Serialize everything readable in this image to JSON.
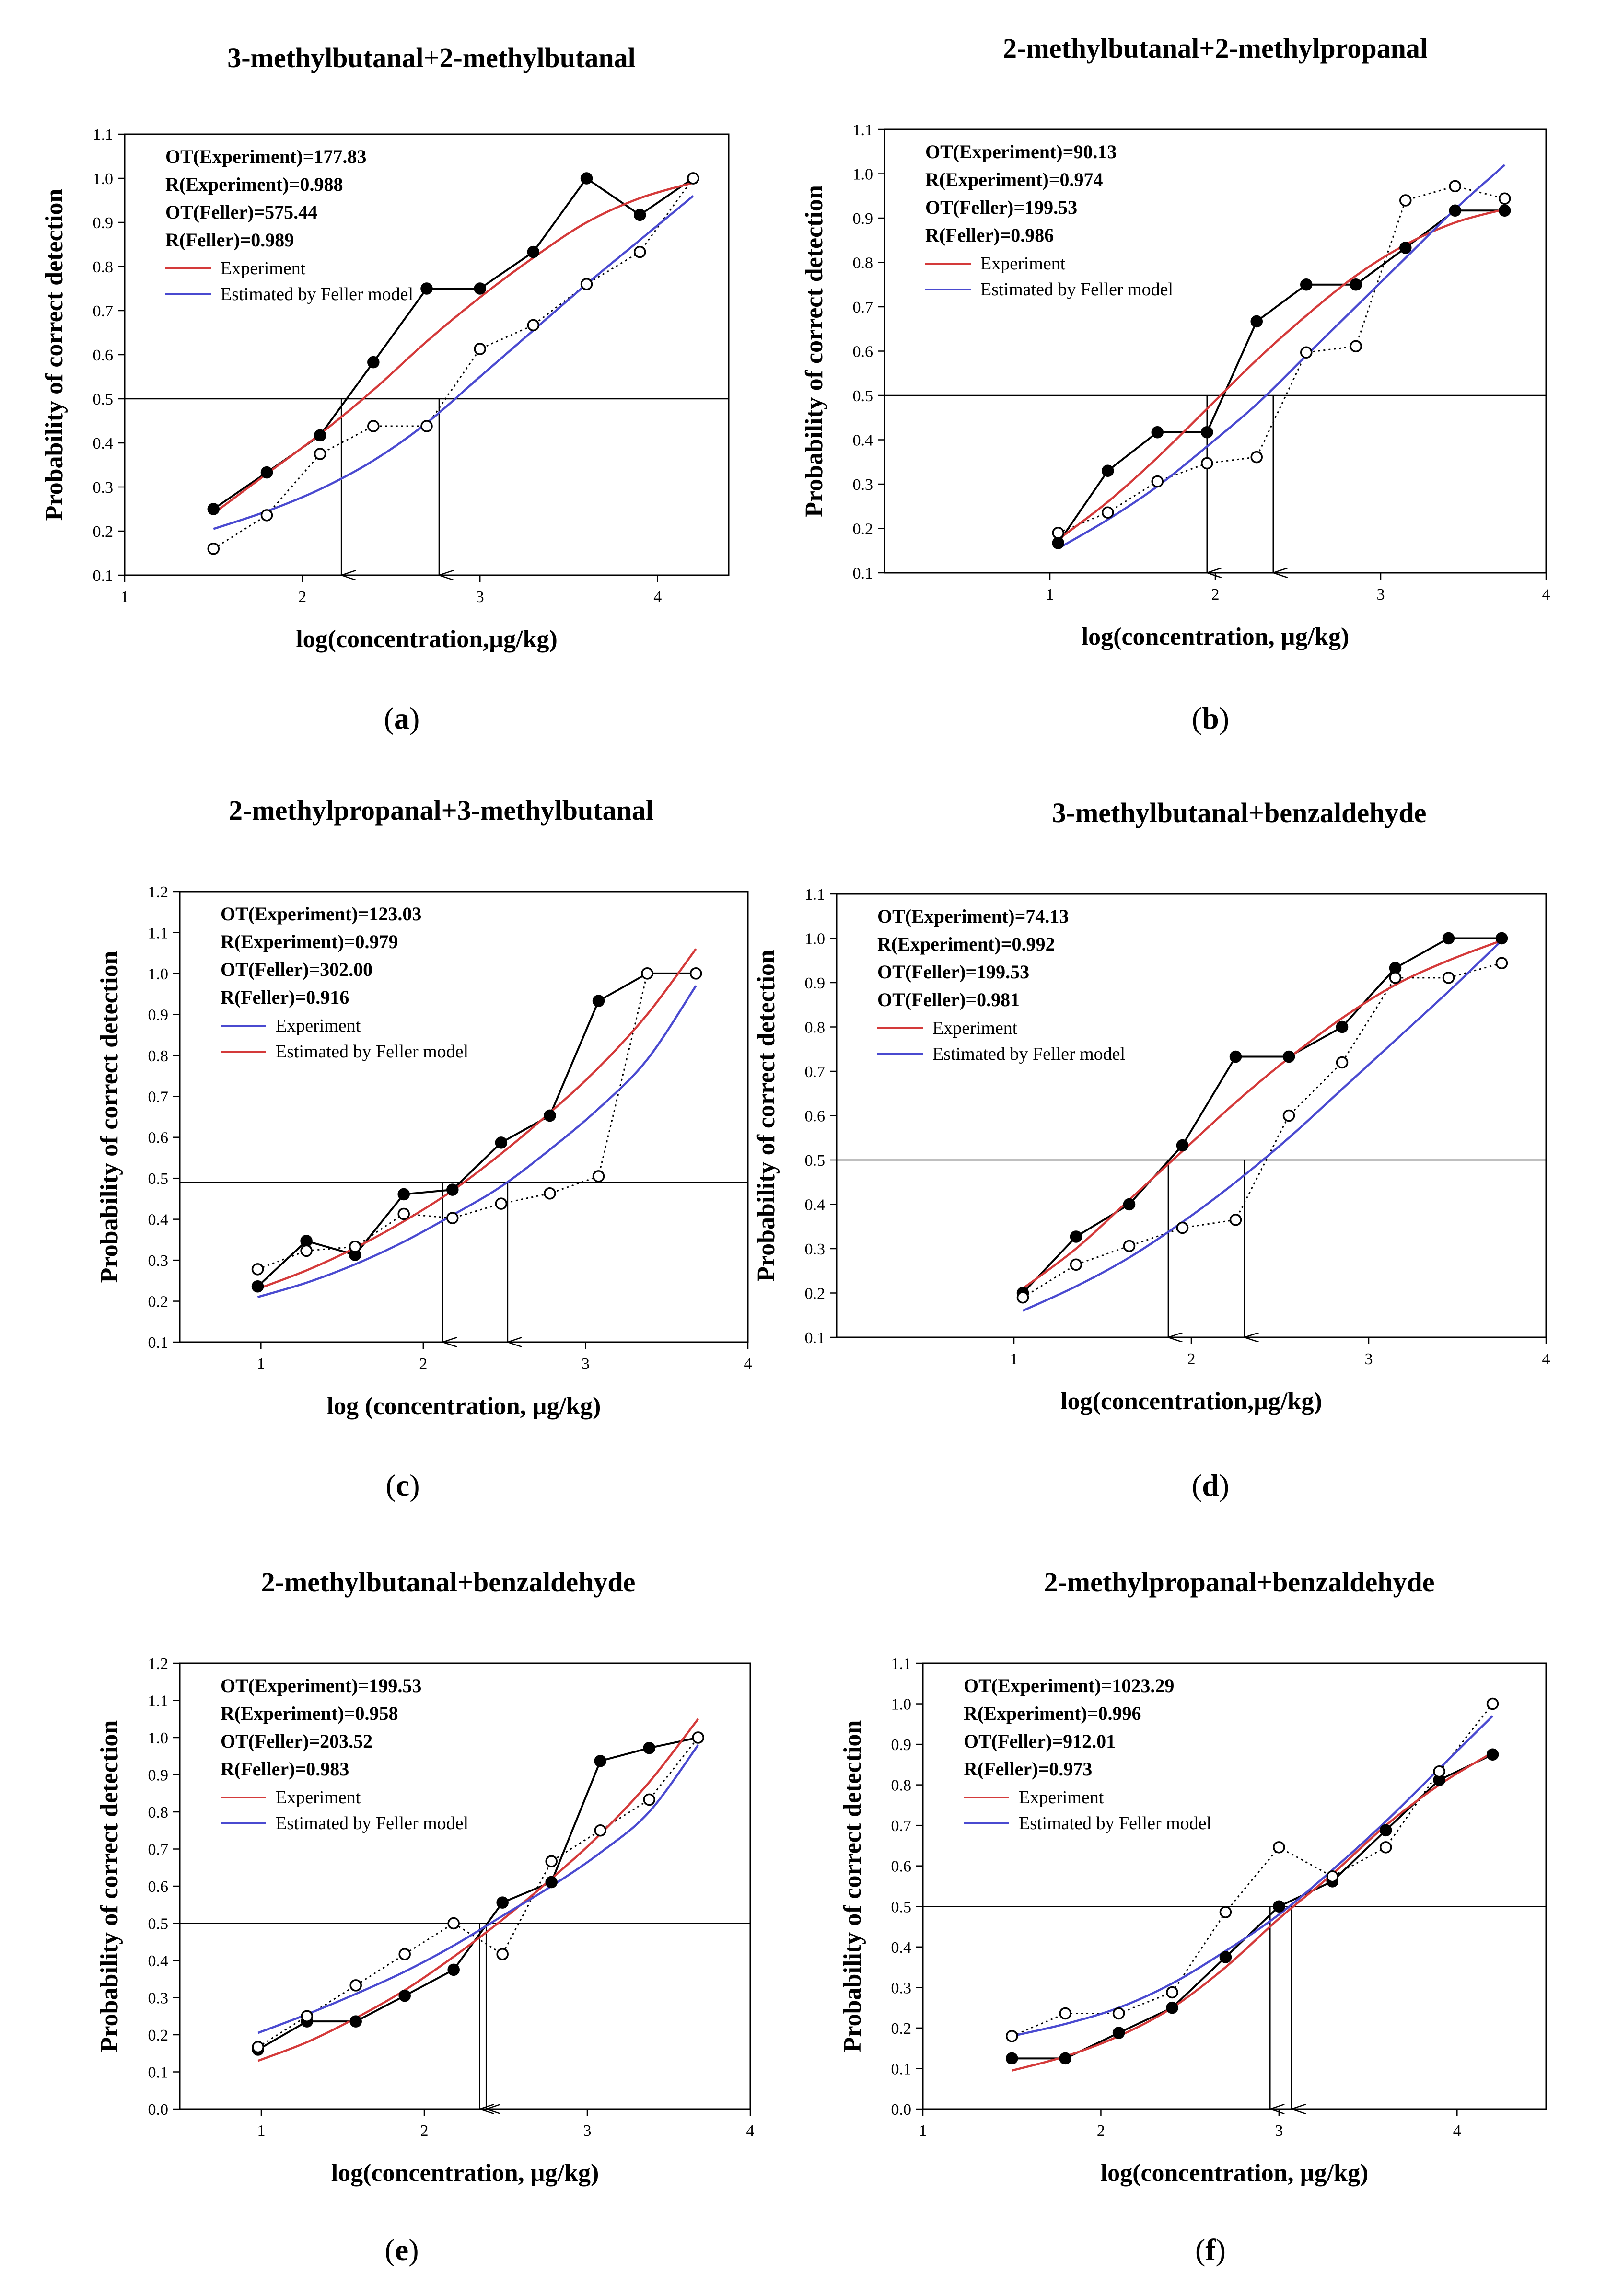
{
  "chart_data": [
    {
      "panel": "a",
      "type": "line",
      "title": "3-methylbutanal+2-methylbutanal",
      "xlabel": "log(concentration,µg/kg)",
      "ylabel": "Probability of correct detection",
      "xlim": [
        1,
        4.4
      ],
      "ylim": [
        0.1,
        1.1
      ],
      "xticks": [
        "1",
        "2",
        "3",
        "4"
      ],
      "yticks": [
        "0.1",
        "0.2",
        "0.3",
        "0.4",
        "0.5",
        "0.6",
        "0.7",
        "0.8",
        "0.9",
        "1.0",
        "1.1"
      ],
      "stats": [
        "OT(Experiment)=177.83",
        "R(Experiment)=0.988",
        "OT(Feller)=575.44",
        "R(Feller)=0.989"
      ],
      "legend": [
        {
          "label": "Experiment",
          "color": "#d43a3a"
        },
        {
          "label": "Estimated by Feller model",
          "color": "#4a4ad0"
        }
      ],
      "threshold": 0.5,
      "arrows_x": [
        2.22,
        2.77
      ],
      "series": [
        {
          "name": "Experiment (observed)",
          "marker": "filled",
          "style": "solid",
          "x": [
            1.5,
            1.8,
            2.1,
            2.4,
            2.7,
            3.0,
            3.3,
            3.6,
            3.9,
            4.2
          ],
          "values": [
            0.25,
            0.333,
            0.417,
            0.583,
            0.75,
            0.75,
            0.833,
            1.0,
            0.917,
            1.0
          ]
        },
        {
          "name": "Feller model (observed)",
          "marker": "open",
          "style": "dotted",
          "x": [
            1.5,
            1.8,
            2.1,
            2.4,
            2.7,
            3.0,
            3.3,
            3.6,
            3.9,
            4.2
          ],
          "values": [
            0.16,
            0.236,
            0.375,
            0.438,
            0.438,
            0.613,
            0.667,
            0.76,
            0.833,
            1.0
          ]
        },
        {
          "name": "Experiment fit",
          "color": "#d43a3a",
          "style": "fit",
          "x": [
            1.5,
            1.8,
            2.1,
            2.4,
            2.7,
            3.0,
            3.3,
            3.6,
            3.9,
            4.2
          ],
          "values": [
            0.24,
            0.33,
            0.42,
            0.52,
            0.63,
            0.73,
            0.82,
            0.9,
            0.955,
            0.99
          ]
        },
        {
          "name": "Feller fit",
          "color": "#4a4ad0",
          "style": "fit",
          "x": [
            1.5,
            1.8,
            2.1,
            2.4,
            2.7,
            3.0,
            3.3,
            3.6,
            3.9,
            4.2
          ],
          "values": [
            0.205,
            0.245,
            0.295,
            0.36,
            0.445,
            0.55,
            0.655,
            0.76,
            0.86,
            0.96
          ]
        }
      ]
    },
    {
      "panel": "b",
      "type": "line",
      "title": "2-methylbutanal+2-methylpropanal",
      "xlabel": "log(concentration, µg/kg)",
      "ylabel": "Probability of correct detection",
      "xlim": [
        0,
        4
      ],
      "ylim": [
        0.1,
        1.1
      ],
      "xticks": [
        "1",
        "2",
        "3",
        "4"
      ],
      "yticks": [
        "0.1",
        "0.2",
        "0.3",
        "0.4",
        "0.5",
        "0.6",
        "0.7",
        "0.8",
        "0.9",
        "1.0",
        "1.1"
      ],
      "stats": [
        "OT(Experiment)=90.13",
        "R(Experiment)=0.974",
        "OT(Feller)=199.53",
        "R(Feller)=0.986"
      ],
      "legend": [
        {
          "label": "Experiment",
          "color": "#d43a3a"
        },
        {
          "label": "Estimated by Feller model",
          "color": "#4a4ad0"
        }
      ],
      "threshold": 0.5,
      "arrows_x": [
        1.95,
        2.35
      ],
      "series": [
        {
          "name": "Experiment (observed)",
          "marker": "filled",
          "style": "solid",
          "x": [
            1.05,
            1.35,
            1.65,
            1.95,
            2.25,
            2.55,
            2.85,
            3.15,
            3.45,
            3.75
          ],
          "values": [
            0.167,
            0.33,
            0.417,
            0.417,
            0.667,
            0.75,
            0.75,
            0.833,
            0.917,
            0.917
          ]
        },
        {
          "name": "Feller model (observed)",
          "marker": "open",
          "style": "dotted",
          "x": [
            1.05,
            1.35,
            1.65,
            1.95,
            2.25,
            2.55,
            2.85,
            3.15,
            3.45,
            3.75
          ],
          "values": [
            0.19,
            0.236,
            0.306,
            0.347,
            0.361,
            0.597,
            0.611,
            0.94,
            0.972,
            0.944
          ]
        },
        {
          "name": "Experiment fit",
          "color": "#d43a3a",
          "style": "fit",
          "x": [
            1.05,
            1.35,
            1.65,
            1.95,
            2.25,
            2.55,
            2.85,
            3.15,
            3.45,
            3.75
          ],
          "values": [
            0.175,
            0.26,
            0.36,
            0.47,
            0.58,
            0.68,
            0.77,
            0.84,
            0.89,
            0.92
          ]
        },
        {
          "name": "Feller fit",
          "color": "#4a4ad0",
          "style": "fit",
          "x": [
            1.05,
            1.35,
            1.65,
            1.95,
            2.25,
            2.55,
            2.85,
            3.15,
            3.45,
            3.75
          ],
          "values": [
            0.155,
            0.22,
            0.295,
            0.385,
            0.48,
            0.59,
            0.7,
            0.81,
            0.92,
            1.02
          ]
        }
      ]
    },
    {
      "panel": "c",
      "type": "line",
      "title": "2-methylpropanal+3-methylbutanal",
      "xlabel": "log (concentration, µg/kg)",
      "ylabel": "Probability of correct detection",
      "xlim": [
        0.5,
        4
      ],
      "ylim": [
        0.1,
        1.2
      ],
      "xticks": [
        "1",
        "2",
        "3",
        "4"
      ],
      "yticks": [
        "0.1",
        "0.2",
        "0.3",
        "0.4",
        "0.5",
        "0.6",
        "0.7",
        "0.8",
        "0.9",
        "1.0",
        "1.1",
        "1.2"
      ],
      "stats": [
        "OT(Experiment)=123.03",
        "R(Experiment)=0.979",
        "OT(Feller)=302.00",
        "R(Feller)=0.916"
      ],
      "legend": [
        {
          "label": "Experiment",
          "color": "#4a4ad0"
        },
        {
          "label": "Estimated by Feller model",
          "color": "#d43a3a"
        }
      ],
      "threshold": 0.49,
      "arrows_x": [
        2.12,
        2.52
      ],
      "series": [
        {
          "name": "Experiment (observed)",
          "marker": "filled",
          "style": "solid",
          "x": [
            0.98,
            1.28,
            1.58,
            1.88,
            2.18,
            2.48,
            2.78,
            3.08,
            3.38,
            3.68
          ],
          "values": [
            0.236,
            0.347,
            0.313,
            0.461,
            0.472,
            0.587,
            0.653,
            0.933,
            1.0,
            1.0
          ]
        },
        {
          "name": "Feller model (observed)",
          "marker": "open",
          "style": "dotted",
          "x": [
            0.98,
            1.28,
            1.58,
            1.88,
            2.18,
            2.48,
            2.78,
            3.08,
            3.38,
            3.68
          ],
          "values": [
            0.278,
            0.323,
            0.333,
            0.413,
            0.403,
            0.438,
            0.463,
            0.505,
            1.0,
            1.0
          ]
        },
        {
          "name": "Experiment fit",
          "color": "#4a4ad0",
          "style": "fit",
          "x": [
            0.98,
            1.28,
            1.58,
            1.88,
            2.18,
            2.48,
            2.78,
            3.08,
            3.38,
            3.68
          ],
          "values": [
            0.21,
            0.245,
            0.29,
            0.345,
            0.41,
            0.48,
            0.57,
            0.67,
            0.79,
            0.97
          ]
        },
        {
          "name": "Feller fit",
          "color": "#d43a3a",
          "style": "fit",
          "x": [
            0.98,
            1.28,
            1.58,
            1.88,
            2.18,
            2.48,
            2.78,
            3.08,
            3.38,
            3.68
          ],
          "values": [
            0.23,
            0.275,
            0.33,
            0.395,
            0.47,
            0.56,
            0.66,
            0.77,
            0.9,
            1.06
          ]
        }
      ]
    },
    {
      "panel": "d",
      "type": "line",
      "title": "3-methylbutanal+benzaldehyde",
      "xlabel": "log(concentration,µg/kg)",
      "ylabel": "Probability of correct detection",
      "xlim": [
        0,
        4
      ],
      "ylim": [
        0.1,
        1.1
      ],
      "xticks": [
        "1",
        "2",
        "3",
        "4"
      ],
      "yticks": [
        "0.1",
        "0.2",
        "0.3",
        "0.4",
        "0.5",
        "0.6",
        "0.7",
        "0.8",
        "0.9",
        "1.0",
        "1.1"
      ],
      "stats": [
        "OT(Experiment)=74.13",
        "R(Experiment)=0.992",
        "OT(Feller)=199.53",
        "OT(Feller)=0.981"
      ],
      "legend": [
        {
          "label": "Experiment",
          "color": "#d43a3a"
        },
        {
          "label": "Estimated by Feller model",
          "color": "#4a4ad0"
        }
      ],
      "threshold": 0.5,
      "arrows_x": [
        1.87,
        2.3
      ],
      "series": [
        {
          "name": "Experiment (observed)",
          "marker": "filled",
          "style": "solid",
          "x": [
            1.05,
            1.35,
            1.65,
            1.95,
            2.25,
            2.55,
            2.85,
            3.15,
            3.45,
            3.75
          ],
          "values": [
            0.2,
            0.327,
            0.4,
            0.533,
            0.733,
            0.733,
            0.8,
            0.933,
            1.0,
            1.0
          ]
        },
        {
          "name": "Feller model (observed)",
          "marker": "open",
          "style": "dotted",
          "x": [
            1.05,
            1.35,
            1.65,
            1.95,
            2.25,
            2.55,
            2.85,
            3.15,
            3.45,
            3.75
          ],
          "values": [
            0.19,
            0.264,
            0.306,
            0.347,
            0.365,
            0.6,
            0.72,
            0.911,
            0.911,
            0.944
          ]
        },
        {
          "name": "Experiment fit",
          "color": "#d43a3a",
          "style": "fit",
          "x": [
            1.05,
            1.35,
            1.65,
            1.95,
            2.25,
            2.55,
            2.85,
            3.15,
            3.45,
            3.75
          ],
          "values": [
            0.21,
            0.3,
            0.41,
            0.52,
            0.63,
            0.73,
            0.82,
            0.895,
            0.95,
            0.995
          ]
        },
        {
          "name": "Feller fit",
          "color": "#4a4ad0",
          "style": "fit",
          "x": [
            1.05,
            1.35,
            1.65,
            1.95,
            2.25,
            2.55,
            2.85,
            3.15,
            3.45,
            3.75
          ],
          "values": [
            0.16,
            0.215,
            0.28,
            0.36,
            0.45,
            0.55,
            0.66,
            0.77,
            0.88,
            0.995
          ]
        }
      ]
    },
    {
      "panel": "e",
      "type": "line",
      "title": "2-methylbutanal+benzaldehyde",
      "xlabel": "log(concentration, µg/kg)",
      "ylabel": "Probability of correct detection",
      "xlim": [
        0.5,
        4
      ],
      "ylim": [
        0.0,
        1.2
      ],
      "xticks": [
        "1",
        "2",
        "3",
        "4"
      ],
      "yticks": [
        "0.0",
        "0.1",
        "0.2",
        "0.3",
        "0.4",
        "0.5",
        "0.6",
        "0.7",
        "0.8",
        "0.9",
        "1.0",
        "1.1",
        "1.2"
      ],
      "stats": [
        "OT(Experiment)=199.53",
        "R(Experiment)=0.958",
        "OT(Feller)=203.52",
        "R(Feller)=0.983"
      ],
      "legend": [
        {
          "label": "Experiment",
          "color": "#d43a3a"
        },
        {
          "label": "Estimated by Feller model",
          "color": "#4a4ad0"
        }
      ],
      "threshold": 0.5,
      "arrows_x": [
        2.34,
        2.38
      ],
      "series": [
        {
          "name": "Experiment (observed)",
          "marker": "filled",
          "style": "solid",
          "x": [
            0.98,
            1.28,
            1.58,
            1.88,
            2.18,
            2.48,
            2.78,
            3.08,
            3.38,
            3.68
          ],
          "values": [
            0.16,
            0.236,
            0.236,
            0.305,
            0.375,
            0.556,
            0.611,
            0.937,
            0.972,
            1.0
          ]
        },
        {
          "name": "Feller model (observed)",
          "marker": "open",
          "style": "dotted",
          "x": [
            0.98,
            1.28,
            1.58,
            1.88,
            2.18,
            2.48,
            2.78,
            3.08,
            3.38,
            3.68
          ],
          "values": [
            0.167,
            0.25,
            0.333,
            0.417,
            0.5,
            0.417,
            0.667,
            0.75,
            0.833,
            1.0
          ]
        },
        {
          "name": "Experiment fit",
          "color": "#d43a3a",
          "style": "fit",
          "x": [
            0.98,
            1.28,
            1.58,
            1.88,
            2.18,
            2.48,
            2.78,
            3.08,
            3.38,
            3.68
          ],
          "values": [
            0.13,
            0.18,
            0.245,
            0.32,
            0.41,
            0.51,
            0.62,
            0.74,
            0.88,
            1.05
          ]
        },
        {
          "name": "Feller fit",
          "color": "#4a4ad0",
          "style": "fit",
          "x": [
            0.98,
            1.28,
            1.58,
            1.88,
            2.18,
            2.48,
            2.78,
            3.08,
            3.38,
            3.68
          ],
          "values": [
            0.205,
            0.255,
            0.31,
            0.37,
            0.44,
            0.52,
            0.6,
            0.69,
            0.8,
            0.98
          ]
        }
      ]
    },
    {
      "panel": "f",
      "type": "line",
      "title": "2-methylpropanal+benzaldehyde",
      "xlabel": "log(concentration, µg/kg)",
      "ylabel": "Probability of correct detection",
      "xlim": [
        1,
        4.5
      ],
      "ylim": [
        0.0,
        1.1
      ],
      "xticks": [
        "1",
        "2",
        "3",
        "4"
      ],
      "yticks": [
        "0.0",
        "0.1",
        "0.2",
        "0.3",
        "0.4",
        "0.5",
        "0.6",
        "0.7",
        "0.8",
        "0.9",
        "1.0",
        "1.1"
      ],
      "stats": [
        "OT(Experiment)=1023.29",
        "R(Experiment)=0.996",
        "OT(Feller)=912.01",
        "R(Feller)=0.973"
      ],
      "legend": [
        {
          "label": "Experiment",
          "color": "#d43a3a"
        },
        {
          "label": "Estimated by Feller model",
          "color": "#4a4ad0"
        }
      ],
      "threshold": 0.5,
      "arrows_x": [
        2.95,
        3.07
      ],
      "series": [
        {
          "name": "Experiment (observed)",
          "marker": "filled",
          "style": "solid",
          "x": [
            1.5,
            1.8,
            2.1,
            2.4,
            2.7,
            3.0,
            3.3,
            3.6,
            3.9,
            4.2
          ],
          "values": [
            0.125,
            0.125,
            0.188,
            0.25,
            0.375,
            0.5,
            0.562,
            0.688,
            0.812,
            0.875
          ]
        },
        {
          "name": "Feller model (observed)",
          "marker": "open",
          "style": "dotted",
          "x": [
            1.5,
            1.8,
            2.1,
            2.4,
            2.7,
            3.0,
            3.3,
            3.6,
            3.9,
            4.2
          ],
          "values": [
            0.18,
            0.236,
            0.236,
            0.288,
            0.486,
            0.646,
            0.574,
            0.646,
            0.833,
            1.0
          ]
        },
        {
          "name": "Experiment fit",
          "color": "#d43a3a",
          "style": "fit",
          "x": [
            1.5,
            1.8,
            2.1,
            2.4,
            2.7,
            3.0,
            3.3,
            3.6,
            3.9,
            4.2
          ],
          "values": [
            0.095,
            0.13,
            0.18,
            0.25,
            0.35,
            0.47,
            0.58,
            0.7,
            0.8,
            0.88
          ]
        },
        {
          "name": "Feller fit",
          "color": "#4a4ad0",
          "style": "fit",
          "x": [
            1.5,
            1.8,
            2.1,
            2.4,
            2.7,
            3.0,
            3.3,
            3.6,
            3.9,
            4.2
          ],
          "values": [
            0.18,
            0.21,
            0.25,
            0.31,
            0.39,
            0.48,
            0.59,
            0.71,
            0.84,
            0.97
          ]
        }
      ]
    }
  ]
}
